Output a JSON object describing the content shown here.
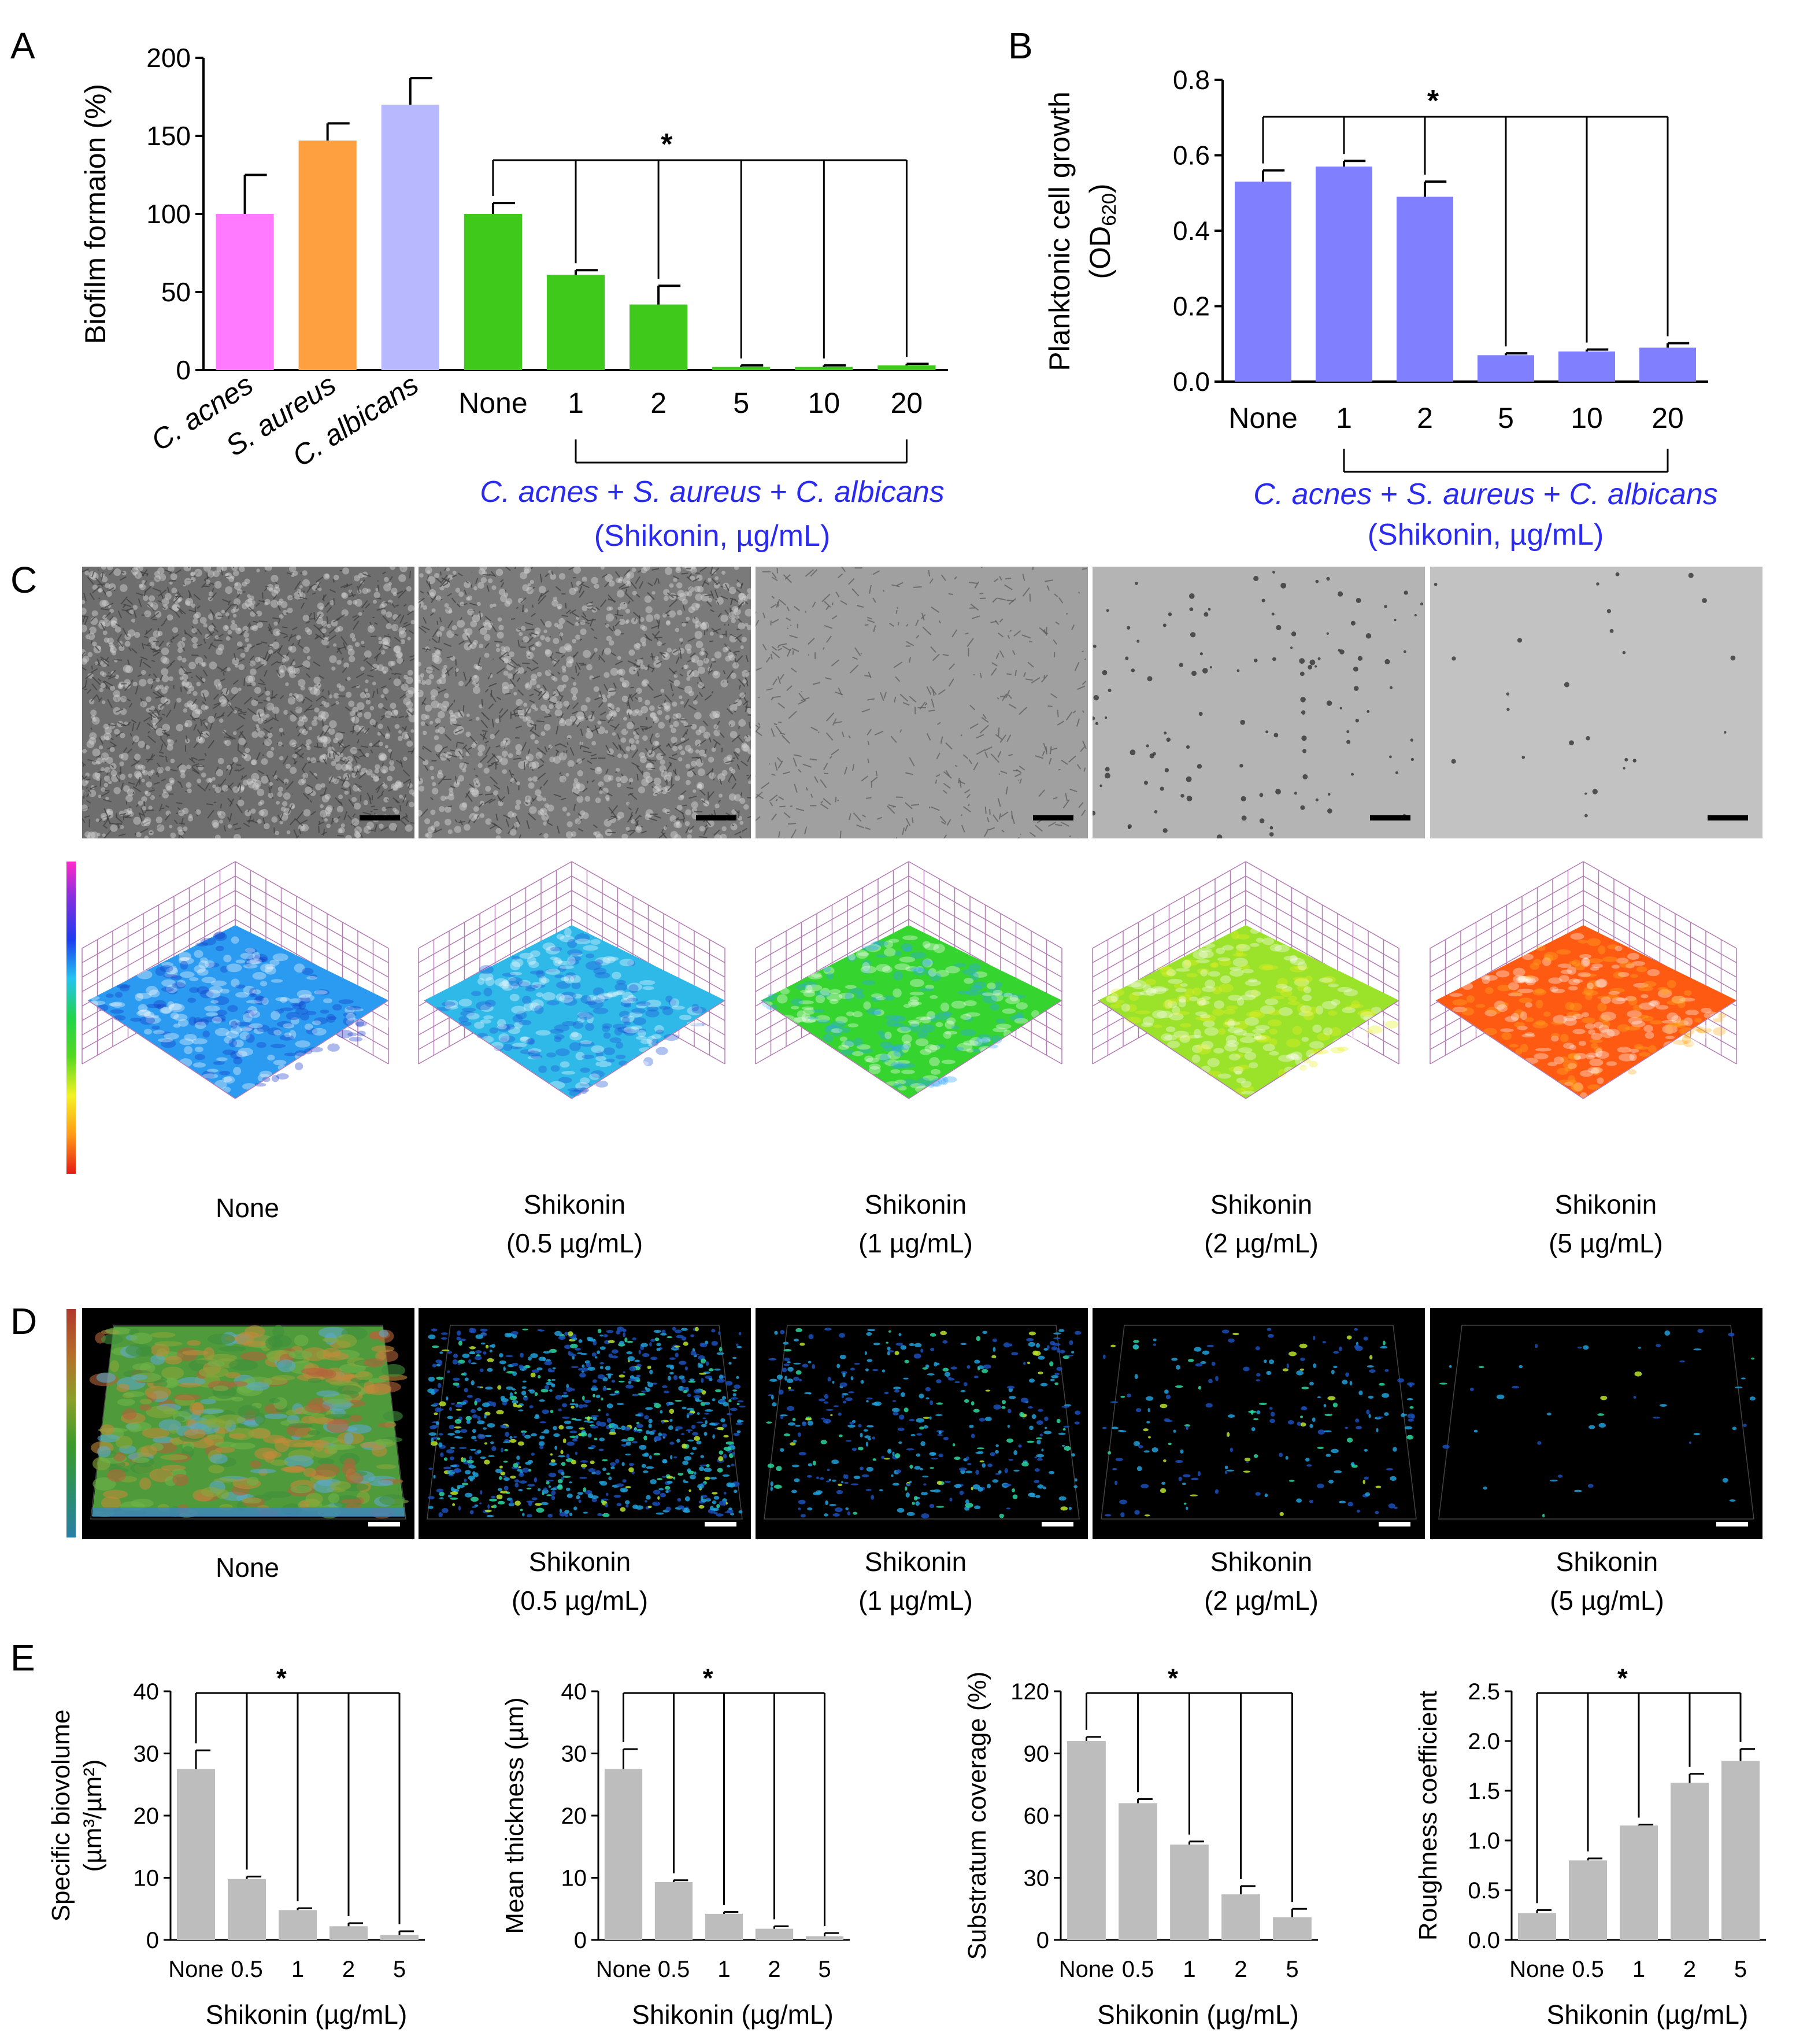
{
  "figure": {
    "panels": {
      "A": "A",
      "B": "B",
      "C": "C",
      "D": "D",
      "E": "E"
    }
  },
  "chart_data": [
    {
      "id": "A",
      "type": "bar",
      "ylabel": "Biofilm formaion (%)",
      "ylim": [
        0,
        200
      ],
      "yticks": [
        "0",
        "50",
        "100",
        "150",
        "200"
      ],
      "categories": [
        "C. acnes",
        "S. aureus",
        "C. albicans",
        "None",
        "1",
        "2",
        "5",
        "10",
        "20"
      ],
      "values": [
        100,
        147,
        170,
        100,
        61,
        42,
        2,
        2,
        3
      ],
      "errors": [
        25,
        11,
        17,
        7,
        3,
        12,
        1,
        1,
        1
      ],
      "colors": [
        "#ff7aff",
        "#ffa040",
        "#b8b8ff",
        "#3ec91b",
        "#3ec91b",
        "#3ec91b",
        "#3ec91b",
        "#3ec91b",
        "#3ec91b"
      ],
      "significance": "*",
      "group_label": "C. acnes + S. aureus + C. albicans",
      "group_sublabel": "(Shikonin, µg/mL)"
    },
    {
      "id": "B",
      "type": "bar",
      "ylabel": "Planktonic cell growth",
      "ylabel2_prefix": "(OD",
      "ylabel2_sub": "620",
      "ylabel2_suffix": ")",
      "ylim": [
        0,
        0.8
      ],
      "yticks": [
        "0.0",
        "0.2",
        "0.4",
        "0.6",
        "0.8"
      ],
      "categories": [
        "None",
        "1",
        "2",
        "5",
        "10",
        "20"
      ],
      "values": [
        0.53,
        0.57,
        0.49,
        0.07,
        0.08,
        0.09
      ],
      "errors": [
        0.03,
        0.015,
        0.04,
        0.005,
        0.005,
        0.012
      ],
      "colors": [
        "#8080ff",
        "#8080ff",
        "#8080ff",
        "#8080ff",
        "#8080ff",
        "#8080ff"
      ],
      "significance": "*",
      "group_label": "C. acnes + S. aureus + C. albicans",
      "group_sublabel": "(Shikonin, µg/mL)"
    },
    {
      "id": "E1",
      "type": "bar",
      "ylabel": "Specific biovolume",
      "ylabel2": "(µm³/µm²)",
      "xlabel": "Shikonin (µg/mL)",
      "ylim": [
        0,
        40
      ],
      "yticks": [
        "0",
        "10",
        "20",
        "30",
        "40"
      ],
      "categories": [
        "None",
        "0.5",
        "1",
        "2",
        "5"
      ],
      "values": [
        27.5,
        9.8,
        4.8,
        2.2,
        0.8
      ],
      "errors": [
        3.0,
        0.4,
        0.3,
        0.5,
        0.6
      ],
      "significance": "*"
    },
    {
      "id": "E2",
      "type": "bar",
      "ylabel": "Mean thickness (µm)",
      "xlabel": "Shikonin (µg/mL)",
      "ylim": [
        0,
        40
      ],
      "yticks": [
        "0",
        "10",
        "20",
        "30",
        "40"
      ],
      "categories": [
        "None",
        "0.5",
        "1",
        "2",
        "5"
      ],
      "values": [
        27.5,
        9.3,
        4.2,
        1.8,
        0.6
      ],
      "errors": [
        3.2,
        0.3,
        0.3,
        0.4,
        0.5
      ],
      "significance": "*"
    },
    {
      "id": "E3",
      "type": "bar",
      "ylabel": "Substratum coverage (%)",
      "xlabel": "Shikonin (µg/mL)",
      "ylim": [
        0,
        120
      ],
      "yticks": [
        "0",
        "30",
        "60",
        "90",
        "120"
      ],
      "categories": [
        "None",
        "0.5",
        "1",
        "2",
        "5"
      ],
      "values": [
        96,
        66,
        46,
        22,
        11
      ],
      "errors": [
        2,
        2,
        1.5,
        4,
        4
      ],
      "significance": "*"
    },
    {
      "id": "E4",
      "type": "bar",
      "ylabel": "Roughness coefficient",
      "xlabel": "Shikonin (µg/mL)",
      "ylim": [
        0,
        2.5
      ],
      "yticks": [
        "0.0",
        "0.5",
        "1.0",
        "1.5",
        "2.0",
        "2.5"
      ],
      "categories": [
        "None",
        "0.5",
        "1",
        "2",
        "5"
      ],
      "values": [
        0.27,
        0.8,
        1.15,
        1.58,
        1.8
      ],
      "errors": [
        0.03,
        0.02,
        0.01,
        0.09,
        0.12
      ],
      "significance": "*"
    }
  ],
  "panel_c": {
    "captions": [
      {
        "line1": "None",
        "line2": ""
      },
      {
        "line1": "Shikonin",
        "line2": "(0.5 µg/mL)"
      },
      {
        "line1": "Shikonin",
        "line2": "(1 µg/mL)"
      },
      {
        "line1": "Shikonin",
        "line2": "(2 µg/mL)"
      },
      {
        "line1": "Shikonin",
        "line2": "(5 µg/mL)"
      }
    ],
    "micrograph_tones": [
      "#6e6e6e",
      "#7a7a7a",
      "#a0a0a0",
      "#b4b4b4",
      "#c2c2c2"
    ],
    "surface_colors": [
      "#2a9bf0",
      "#2eb9e8",
      "#36d42e",
      "#9be22a",
      "#ff5a12"
    ],
    "surface_highlights": [
      "#1536c8",
      "#1c4fd8",
      "#2fa3ff",
      "#e8f222",
      "#ffb020"
    ]
  },
  "panel_d": {
    "captions": [
      {
        "line1": "None",
        "line2": ""
      },
      {
        "line1": "Shikonin",
        "line2": "(0.5 µg/mL)"
      },
      {
        "line1": "Shikonin",
        "line2": "(1 µg/mL)"
      },
      {
        "line1": "Shikonin",
        "line2": "(2 µg/mL)"
      },
      {
        "line1": "Shikonin",
        "line2": "(5 µg/mL)"
      }
    ],
    "densities": [
      1.0,
      0.6,
      0.28,
      0.14,
      0.03
    ]
  }
}
